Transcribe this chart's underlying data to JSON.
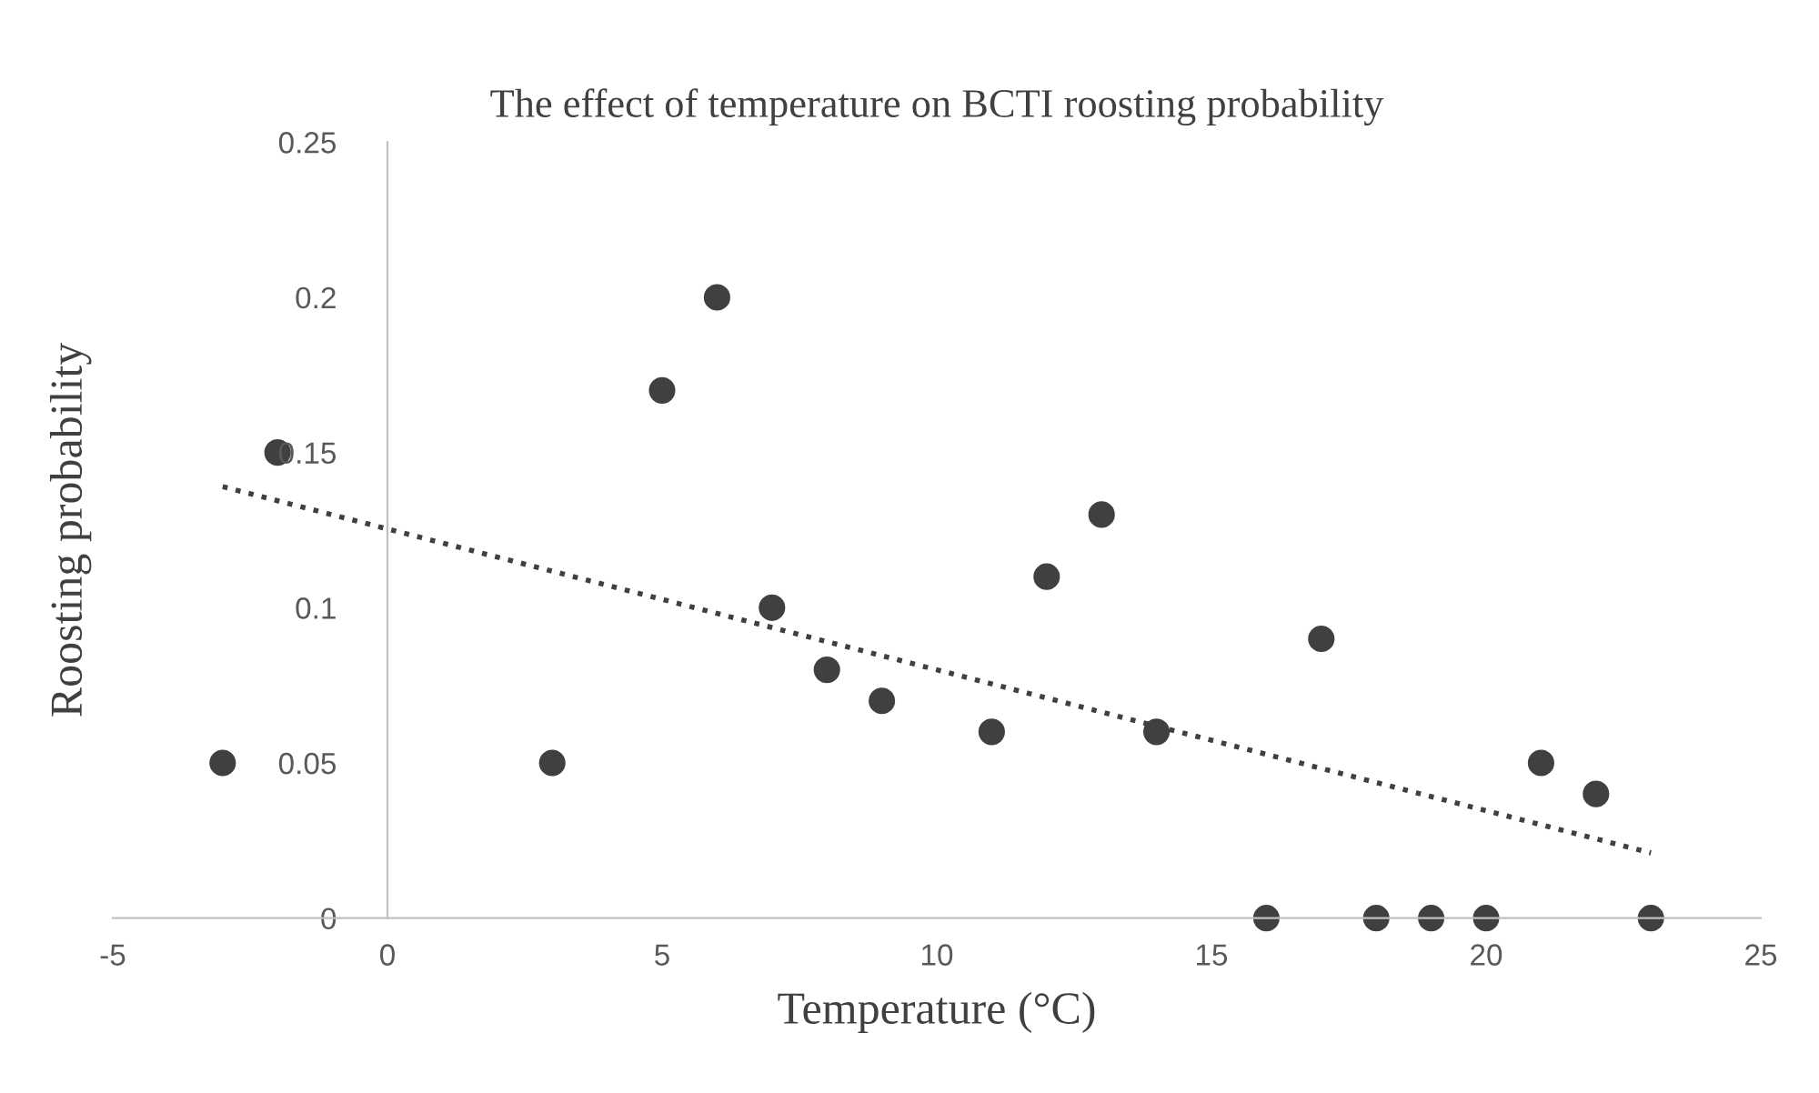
{
  "chart_data": {
    "type": "scatter",
    "title": "The effect of temperature on BCTI roosting probability",
    "xlabel": "Temperature (°C)",
    "ylabel": "Roosting probability",
    "series": [
      {
        "color": "#404040",
        "marker": "circle",
        "x": [
          -3,
          -2,
          3,
          5,
          6,
          7,
          8,
          9,
          11,
          12,
          13,
          14,
          16,
          17,
          18,
          19,
          20,
          21,
          22,
          23
        ],
        "values": [
          0.05,
          0.15,
          0.05,
          0.17,
          0.2,
          0.1,
          0.08,
          0.07,
          0.06,
          0.11,
          0.13,
          0.06,
          0,
          0.09,
          0,
          0,
          0,
          0.05,
          0.04,
          0
        ]
      },
      {
        "type": "line",
        "color": "#404040",
        "line_style": "dotted",
        "marker": "none",
        "x": [
          -3,
          23
        ],
        "values": [
          0.139,
          0.021
        ]
      }
    ],
    "xlim": [
      -5,
      25
    ],
    "xticks": [
      -5,
      0,
      5,
      10,
      15,
      20,
      25
    ],
    "ylim": [
      0,
      0.25
    ],
    "yticks": [
      0,
      0.05,
      0.1,
      0.15,
      0.2,
      0.25
    ],
    "grid": false,
    "legend": false
  }
}
